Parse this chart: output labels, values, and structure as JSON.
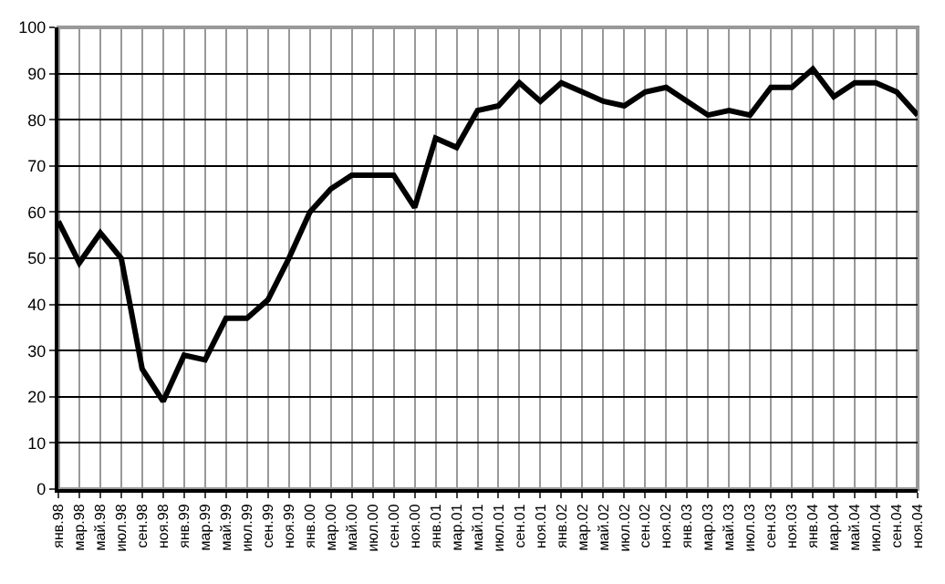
{
  "chart_data": {
    "type": "line",
    "categories": [
      "янв.98",
      "мар.98",
      "май.98",
      "июл.98",
      "сен.98",
      "ноя.98",
      "янв.99",
      "мар.99",
      "май.99",
      "июл.99",
      "сен.99",
      "ноя.99",
      "янв.00",
      "мар.00",
      "май.00",
      "июл.00",
      "сен.00",
      "ноя.00",
      "янв.01",
      "мар.01",
      "май.01",
      "июл.01",
      "сен.01",
      "ноя.01",
      "янв.02",
      "мар.02",
      "май.02",
      "июл.02",
      "сен.02",
      "ноя.02",
      "янв.03",
      "мар.03",
      "май.03",
      "июл.03",
      "сен.03",
      "ноя.03",
      "янв.04",
      "мар.04",
      "май.04",
      "июл.04",
      "сен.04",
      "ноя.04"
    ],
    "series": [
      {
        "color": "#000000",
        "values": [
          58,
          49,
          55.5,
          50,
          26,
          19,
          29,
          28,
          37,
          37,
          41,
          50,
          60,
          65,
          68,
          68,
          68,
          61,
          76,
          74,
          82,
          83,
          88,
          84,
          88,
          86,
          84,
          83,
          86,
          87,
          84,
          81,
          82,
          81,
          87,
          87,
          91,
          85,
          88,
          88,
          86,
          81
        ]
      }
    ],
    "ylim": [
      0,
      100
    ],
    "yticks": [
      0,
      10,
      20,
      30,
      40,
      50,
      60,
      70,
      80,
      90,
      100
    ],
    "grid": true,
    "marker": "none",
    "line_style": "solid"
  }
}
